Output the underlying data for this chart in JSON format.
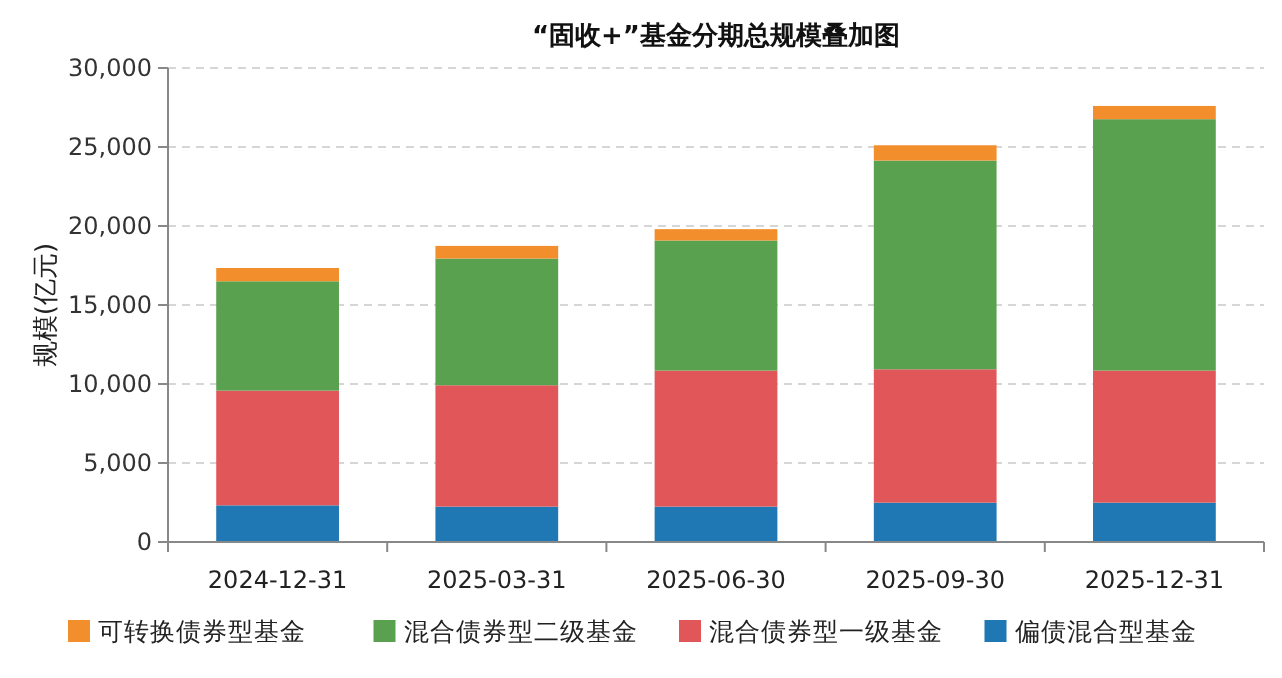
{
  "chart_data": {
    "type": "bar",
    "stacked": true,
    "title": "“固收+”基金分期总规模叠加图",
    "ylabel": "规模(亿元)",
    "categories": [
      "2024-12-31",
      "2025-03-31",
      "2025-06-30",
      "2025-09-30",
      "2025-12-31"
    ],
    "series": [
      {
        "name": "偏债混合型基金",
        "color": "#1f77b4",
        "values": [
          2320,
          2240,
          2240,
          2490,
          2490
        ]
      },
      {
        "name": "混合债券型一级基金",
        "color": "#e15759",
        "values": [
          7260,
          7680,
          8610,
          8440,
          8360
        ]
      },
      {
        "name": "混合债券型二级基金",
        "color": "#59a14f",
        "values": [
          6920,
          8020,
          8230,
          13210,
          15910
        ]
      },
      {
        "name": "可转换债券型基金",
        "color": "#f28e2b",
        "values": [
          840,
          800,
          720,
          970,
          840
        ]
      }
    ],
    "ylim": [
      0,
      30000
    ],
    "yticks": [
      {
        "value": 0,
        "label": "0"
      },
      {
        "value": 5000,
        "label": "5,000"
      },
      {
        "value": 10000,
        "label": "10,000"
      },
      {
        "value": 15000,
        "label": "15,000"
      },
      {
        "value": 20000,
        "label": "20,000"
      },
      {
        "value": 25000,
        "label": "25,000"
      },
      {
        "value": 30000,
        "label": "30,000"
      }
    ],
    "grid": "y",
    "legend": "bottom"
  }
}
